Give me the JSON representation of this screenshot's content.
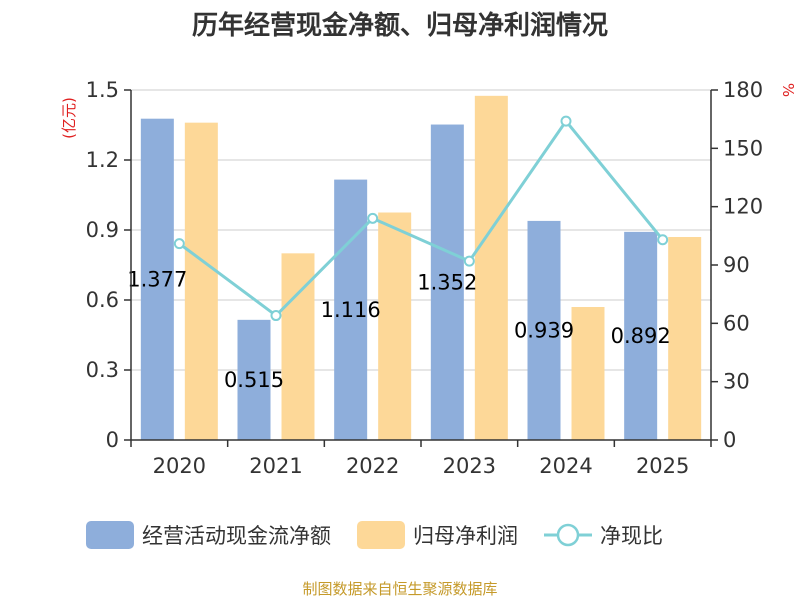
{
  "chart_data": {
    "type": "bar",
    "title": "历年经营现金净额、归母净利润情况",
    "categories": [
      "2020",
      "2021",
      "2022",
      "2023",
      "2024",
      "2025"
    ],
    "series": [
      {
        "name": "经营活动现金流净额",
        "type": "bar",
        "axis": "left",
        "color": "#8eaedb",
        "values": [
          1.377,
          0.515,
          1.116,
          1.352,
          0.939,
          0.892
        ]
      },
      {
        "name": "归母净利润",
        "type": "bar",
        "axis": "left",
        "color": "#fdd898",
        "values": [
          1.36,
          0.8,
          0.975,
          1.475,
          0.57,
          0.87
        ]
      },
      {
        "name": "净现比",
        "type": "line",
        "axis": "right",
        "color": "#7fd0d6",
        "values": [
          101,
          64,
          114,
          92,
          164,
          103
        ]
      }
    ],
    "data_labels": [
      "1.377",
      "0.515",
      "1.116",
      "1.352",
      "0.939",
      "0.892"
    ],
    "y_left": {
      "label": "(亿元)",
      "ylim": [
        0,
        1.5
      ],
      "ticks": [
        "0",
        "0.3",
        "0.6",
        "0.9",
        "1.2",
        "1.5"
      ]
    },
    "y_right": {
      "label": "%",
      "ylim": [
        0,
        180
      ],
      "ticks": [
        "0",
        "30",
        "60",
        "90",
        "120",
        "150",
        "180"
      ]
    },
    "grid": true,
    "legend_position": "bottom"
  },
  "source_text": "制图数据来自恒生聚源数据库",
  "colors": {
    "axis": "#333333",
    "grid": "#cccccc",
    "unit_label": "#e01f1f",
    "source": "#c59a2a"
  }
}
